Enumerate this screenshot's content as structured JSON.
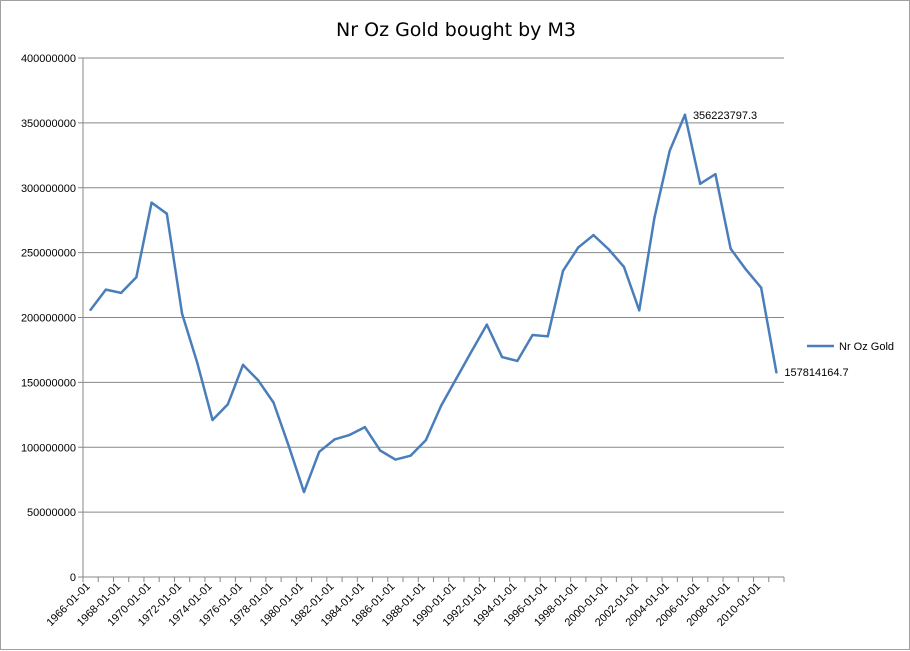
{
  "chart_data": {
    "type": "line",
    "title": "Nr Oz Gold bought by M3",
    "xlabel": "",
    "ylabel": "",
    "ylim": [
      0,
      400000000
    ],
    "y_ticks": [
      "0",
      "50000000",
      "100000000",
      "150000000",
      "200000000",
      "250000000",
      "300000000",
      "350000000",
      "400000000"
    ],
    "grid": "horizontal",
    "legend_position": "right",
    "x_tick_labels": [
      "1966-01-01",
      "1968-01-01",
      "1970-01-01",
      "1972-01-01",
      "1974-01-01",
      "1976-01-01",
      "1978-01-01",
      "1980-01-01",
      "1982-01-01",
      "1984-01-01",
      "1986-01-01",
      "1988-01-01",
      "1990-01-01",
      "1992-01-01",
      "1994-01-01",
      "1996-01-01",
      "1998-01-01",
      "2000-01-01",
      "2002-01-01",
      "2004-01-01",
      "2006-01-01",
      "2008-01-01",
      "2010-01-01"
    ],
    "series": [
      {
        "name": "Nr Oz Gold",
        "color": "#4a7ebb",
        "years": [
          1966,
          1967,
          1968,
          1969,
          1970,
          1971,
          1972,
          1973,
          1974,
          1975,
          1976,
          1977,
          1978,
          1979,
          1980,
          1981,
          1982,
          1983,
          1984,
          1985,
          1986,
          1987,
          1988,
          1989,
          1990,
          1991,
          1992,
          1993,
          1994,
          1995,
          1996,
          1997,
          1998,
          1999,
          2000,
          2001,
          2002,
          2003,
          2004,
          2005,
          2006,
          2007,
          2008,
          2009,
          2010,
          2011
        ],
        "values": [
          206000000,
          221500000,
          219000000,
          231000000,
          288500000,
          280000000,
          203000000,
          165000000,
          121000000,
          133000000,
          163500000,
          151500000,
          134500000,
          101000000,
          65500000,
          96500000,
          106000000,
          109500000,
          115500000,
          97500000,
          90500000,
          93500000,
          105500000,
          132000000,
          153000000,
          174000000,
          194500000,
          169500000,
          166500000,
          186500000,
          185500000,
          236000000,
          254000000,
          263500000,
          252500000,
          239000000,
          205500000,
          277000000,
          328500000,
          356223797.3,
          303000000,
          310500000,
          253000000,
          237000000,
          223000000,
          157814164.7
        ]
      }
    ],
    "data_labels": [
      {
        "year": 2005,
        "text": "356223797.3"
      },
      {
        "year": 2011,
        "text": "157814164.7"
      }
    ]
  }
}
